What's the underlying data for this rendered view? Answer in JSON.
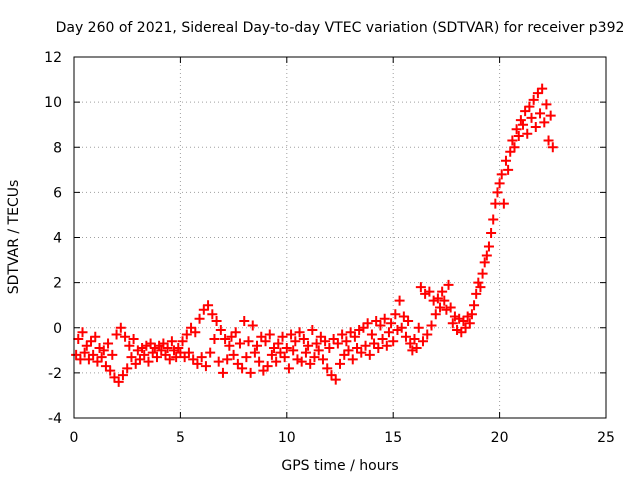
{
  "chart_data": {
    "type": "scatter",
    "title": "Day 260 of 2021, Sidereal Day-to-day VTEC variation (SDTVAR) for receiver p392",
    "xlabel": "GPS time / hours",
    "ylabel": "SDTVAR / TECUs",
    "xlim": [
      0,
      25
    ],
    "ylim": [
      -4,
      12
    ],
    "xticks": [
      0,
      5,
      10,
      15,
      20,
      25
    ],
    "yticks": [
      -4,
      -2,
      0,
      2,
      4,
      6,
      8,
      10,
      12
    ],
    "grid": true,
    "marker": "plus",
    "series": [
      {
        "name": "SDTVAR",
        "color": "#ff0000",
        "points": [
          [
            0.1,
            -1.2
          ],
          [
            0.2,
            -0.5
          ],
          [
            0.3,
            -1.4
          ],
          [
            0.4,
            -0.2
          ],
          [
            0.5,
            -1.1
          ],
          [
            0.6,
            -0.8
          ],
          [
            0.7,
            -1.4
          ],
          [
            0.8,
            -0.6
          ],
          [
            0.9,
            -1.2
          ],
          [
            1.0,
            -0.4
          ],
          [
            1.1,
            -1.5
          ],
          [
            1.2,
            -0.9
          ],
          [
            1.3,
            -1.3
          ],
          [
            1.4,
            -1.0
          ],
          [
            1.5,
            -1.7
          ],
          [
            1.6,
            -0.7
          ],
          [
            1.7,
            -1.9
          ],
          [
            1.8,
            -1.2
          ],
          [
            1.9,
            -2.2
          ],
          [
            2.0,
            -0.3
          ],
          [
            2.1,
            -2.4
          ],
          [
            2.2,
            0.0
          ],
          [
            2.3,
            -2.1
          ],
          [
            2.4,
            -0.4
          ],
          [
            2.5,
            -1.8
          ],
          [
            2.6,
            -0.8
          ],
          [
            2.7,
            -1.3
          ],
          [
            2.8,
            -0.5
          ],
          [
            2.9,
            -1.6
          ],
          [
            3.0,
            -1.0
          ],
          [
            3.1,
            -1.4
          ],
          [
            3.2,
            -0.9
          ],
          [
            3.3,
            -1.2
          ],
          [
            3.4,
            -0.8
          ],
          [
            3.5,
            -1.5
          ],
          [
            3.6,
            -0.7
          ],
          [
            3.7,
            -1.1
          ],
          [
            3.8,
            -0.9
          ],
          [
            3.9,
            -1.3
          ],
          [
            4.0,
            -0.8
          ],
          [
            4.1,
            -1.0
          ],
          [
            4.2,
            -0.7
          ],
          [
            4.3,
            -1.2
          ],
          [
            4.4,
            -0.9
          ],
          [
            4.5,
            -1.4
          ],
          [
            4.6,
            -0.6
          ],
          [
            4.7,
            -1.0
          ],
          [
            4.8,
            -1.3
          ],
          [
            4.9,
            -0.9
          ],
          [
            5.0,
            -1.1
          ],
          [
            5.1,
            -0.6
          ],
          [
            5.2,
            -1.3
          ],
          [
            5.3,
            -0.3
          ],
          [
            5.4,
            -1.1
          ],
          [
            5.5,
            0.0
          ],
          [
            5.6,
            -1.4
          ],
          [
            5.7,
            -0.2
          ],
          [
            5.8,
            -1.6
          ],
          [
            5.9,
            0.4
          ],
          [
            6.0,
            -1.3
          ],
          [
            6.1,
            0.8
          ],
          [
            6.2,
            -1.7
          ],
          [
            6.3,
            1.0
          ],
          [
            6.4,
            -1.1
          ],
          [
            6.5,
            0.6
          ],
          [
            6.6,
            -0.5
          ],
          [
            6.7,
            0.3
          ],
          [
            6.8,
            -1.5
          ],
          [
            6.9,
            -0.1
          ],
          [
            7.0,
            -2.0
          ],
          [
            7.1,
            -0.5
          ],
          [
            7.2,
            -1.4
          ],
          [
            7.3,
            -0.8
          ],
          [
            7.4,
            -0.4
          ],
          [
            7.5,
            -1.2
          ],
          [
            7.6,
            -0.2
          ],
          [
            7.7,
            -1.6
          ],
          [
            7.8,
            -0.7
          ],
          [
            7.9,
            -1.8
          ],
          [
            8.0,
            0.3
          ],
          [
            8.1,
            -1.3
          ],
          [
            8.2,
            -0.6
          ],
          [
            8.3,
            -2.0
          ],
          [
            8.4,
            0.1
          ],
          [
            8.5,
            -1.1
          ],
          [
            8.6,
            -0.8
          ],
          [
            8.7,
            -1.5
          ],
          [
            8.8,
            -0.4
          ],
          [
            8.9,
            -1.9
          ],
          [
            9.0,
            -0.6
          ],
          [
            9.1,
            -1.7
          ],
          [
            9.2,
            -0.3
          ],
          [
            9.3,
            -1.2
          ],
          [
            9.4,
            -0.9
          ],
          [
            9.5,
            -1.5
          ],
          [
            9.6,
            -0.7
          ],
          [
            9.7,
            -1.1
          ],
          [
            9.8,
            -0.4
          ],
          [
            9.9,
            -1.3
          ],
          [
            10.0,
            -0.9
          ],
          [
            10.1,
            -1.8
          ],
          [
            10.2,
            -0.3
          ],
          [
            10.3,
            -1.0
          ],
          [
            10.4,
            -0.6
          ],
          [
            10.5,
            -1.4
          ],
          [
            10.6,
            -0.2
          ],
          [
            10.7,
            -1.5
          ],
          [
            10.8,
            -0.5
          ],
          [
            10.9,
            -1.1
          ],
          [
            11.0,
            -0.8
          ],
          [
            11.1,
            -1.6
          ],
          [
            11.2,
            -0.1
          ],
          [
            11.3,
            -1.3
          ],
          [
            11.4,
            -0.7
          ],
          [
            11.5,
            -1.0
          ],
          [
            11.6,
            -0.4
          ],
          [
            11.7,
            -1.4
          ],
          [
            11.8,
            -0.6
          ],
          [
            11.9,
            -1.8
          ],
          [
            12.0,
            -0.9
          ],
          [
            12.1,
            -2.1
          ],
          [
            12.2,
            -0.5
          ],
          [
            12.3,
            -2.3
          ],
          [
            12.4,
            -0.7
          ],
          [
            12.5,
            -1.6
          ],
          [
            12.6,
            -0.3
          ],
          [
            12.7,
            -1.2
          ],
          [
            12.8,
            -0.6
          ],
          [
            12.9,
            -1.0
          ],
          [
            13.0,
            -0.2
          ],
          [
            13.1,
            -1.4
          ],
          [
            13.2,
            -0.4
          ],
          [
            13.3,
            -0.9
          ],
          [
            13.4,
            -0.1
          ],
          [
            13.5,
            -1.1
          ],
          [
            13.6,
            0.0
          ],
          [
            13.7,
            -0.8
          ],
          [
            13.8,
            0.2
          ],
          [
            13.9,
            -1.2
          ],
          [
            14.0,
            -0.3
          ],
          [
            14.1,
            -0.7
          ],
          [
            14.2,
            0.3
          ],
          [
            14.3,
            -0.9
          ],
          [
            14.4,
            0.1
          ],
          [
            14.5,
            -0.5
          ],
          [
            14.6,
            0.4
          ],
          [
            14.7,
            -0.8
          ],
          [
            14.8,
            -0.2
          ],
          [
            14.9,
            0.2
          ],
          [
            15.0,
            -0.6
          ],
          [
            15.1,
            0.6
          ],
          [
            15.2,
            -0.1
          ],
          [
            15.3,
            1.2
          ],
          [
            15.4,
            0.0
          ],
          [
            15.5,
            0.5
          ],
          [
            15.6,
            -0.4
          ],
          [
            15.7,
            0.3
          ],
          [
            15.8,
            -0.7
          ],
          [
            15.9,
            -1.0
          ],
          [
            16.0,
            -0.5
          ],
          [
            16.1,
            -0.9
          ],
          [
            16.2,
            0.0
          ],
          [
            16.3,
            1.8
          ],
          [
            16.4,
            -0.6
          ],
          [
            16.5,
            1.5
          ],
          [
            16.6,
            -0.3
          ],
          [
            16.7,
            1.6
          ],
          [
            16.8,
            0.1
          ],
          [
            16.9,
            1.2
          ],
          [
            17.0,
            0.6
          ],
          [
            17.1,
            1.3
          ],
          [
            17.2,
            0.9
          ],
          [
            17.3,
            1.6
          ],
          [
            17.4,
            1.2
          ],
          [
            17.5,
            0.8
          ],
          [
            17.6,
            1.9
          ],
          [
            17.7,
            0.9
          ],
          [
            17.8,
            0.2
          ],
          [
            17.9,
            0.5
          ],
          [
            18.0,
            -0.1
          ],
          [
            18.1,
            0.4
          ],
          [
            18.2,
            -0.2
          ],
          [
            18.3,
            0.3
          ],
          [
            18.4,
            0.0
          ],
          [
            18.5,
            0.5
          ],
          [
            18.6,
            0.2
          ],
          [
            18.7,
            0.6
          ],
          [
            18.8,
            1.0
          ],
          [
            18.9,
            1.5
          ],
          [
            19.0,
            2.0
          ],
          [
            19.1,
            1.8
          ],
          [
            19.2,
            2.4
          ],
          [
            19.3,
            2.9
          ],
          [
            19.4,
            3.2
          ],
          [
            19.5,
            3.6
          ],
          [
            19.6,
            4.2
          ],
          [
            19.7,
            4.8
          ],
          [
            19.8,
            5.5
          ],
          [
            19.9,
            6.0
          ],
          [
            20.0,
            6.4
          ],
          [
            20.1,
            6.8
          ],
          [
            20.2,
            5.5
          ],
          [
            20.3,
            7.4
          ],
          [
            20.4,
            7.0
          ],
          [
            20.5,
            7.8
          ],
          [
            20.6,
            8.3
          ],
          [
            20.7,
            8.0
          ],
          [
            20.8,
            8.8
          ],
          [
            20.9,
            8.5
          ],
          [
            21.0,
            9.2
          ],
          [
            21.1,
            9.0
          ],
          [
            21.2,
            9.6
          ],
          [
            21.3,
            8.6
          ],
          [
            21.4,
            9.8
          ],
          [
            21.5,
            9.3
          ],
          [
            21.6,
            10.1
          ],
          [
            21.7,
            8.9
          ],
          [
            21.8,
            10.4
          ],
          [
            21.9,
            9.5
          ],
          [
            22.0,
            10.6
          ],
          [
            22.1,
            9.1
          ],
          [
            22.2,
            9.9
          ],
          [
            22.3,
            8.3
          ],
          [
            22.4,
            9.4
          ],
          [
            22.5,
            8.0
          ]
        ]
      }
    ]
  }
}
